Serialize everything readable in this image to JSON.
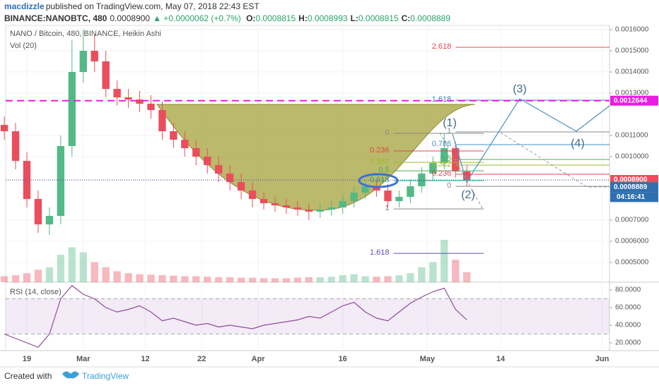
{
  "header": {
    "author": "macdizzle",
    "published": "published on TradingView.com, May 07, 2018 22:43 EST",
    "symbol": "BINANCE:NANOBTC, 480",
    "price": "0.0008900",
    "change": "▲ +0.0000062 (+0.7%)",
    "ohlc": [
      {
        "key": "O:",
        "value": "0.0008815"
      },
      {
        "key": "H:",
        "value": "0.0008993"
      },
      {
        "key": "L:",
        "value": "0.0008815"
      },
      {
        "key": "C:",
        "value": "0.0008889"
      }
    ]
  },
  "chart_data": {
    "type": "candlestick",
    "title": "NANO / Bitcoin, 480, BINANCE, Heikin Ashi",
    "x": [
      -4,
      -2,
      0,
      2,
      4,
      6,
      8,
      10,
      12,
      14,
      16,
      18,
      20,
      22,
      24,
      26,
      28,
      30,
      32,
      34,
      36,
      38,
      40,
      42,
      44,
      46,
      48,
      50,
      52,
      54,
      56,
      58,
      60,
      62,
      64,
      66,
      68,
      70,
      72,
      74,
      76,
      78
    ],
    "open": [
      0.00115,
      0.00112,
      0.00098,
      0.0008,
      0.00068,
      0.00072,
      0.00105,
      0.0014,
      0.0015,
      0.00145,
      0.00132,
      0.00128,
      0.00127,
      0.00125,
      0.00122,
      0.00112,
      0.00108,
      0.00104,
      0.001,
      0.00096,
      0.00092,
      0.00088,
      0.00084,
      0.0008,
      0.00078,
      0.00077,
      0.00076,
      0.00075,
      0.00074,
      0.00075,
      0.00076,
      0.00079,
      0.00083,
      0.00086,
      0.00084,
      0.00079,
      0.00081,
      0.00086,
      0.00092,
      0.00097,
      0.00104,
      0.00093
    ],
    "high": [
      0.00119,
      0.00116,
      0.00102,
      0.00084,
      0.00076,
      0.0011,
      0.00155,
      0.0016,
      0.00158,
      0.0015,
      0.00136,
      0.00132,
      0.00131,
      0.00129,
      0.00126,
      0.00116,
      0.00112,
      0.00108,
      0.00104,
      0.001,
      0.00096,
      0.00092,
      0.00088,
      0.00083,
      0.00081,
      0.0008,
      0.00079,
      0.00078,
      0.00078,
      0.00079,
      0.00082,
      0.00086,
      0.00089,
      0.00089,
      0.00087,
      0.00084,
      0.00089,
      0.00095,
      0.001,
      0.00111,
      0.00107,
      0.00096
    ],
    "low": [
      0.00108,
      0.00094,
      0.00076,
      0.00064,
      0.00063,
      0.00068,
      0.001,
      0.00135,
      0.0014,
      0.00128,
      0.00124,
      0.00123,
      0.00121,
      0.00118,
      0.00108,
      0.00104,
      0.001,
      0.00096,
      0.00092,
      0.00088,
      0.00084,
      0.0008,
      0.00076,
      0.00075,
      0.00074,
      0.00073,
      0.00072,
      0.0007,
      0.00071,
      0.00072,
      0.00073,
      0.00076,
      0.0008,
      0.00081,
      0.00076,
      0.00076,
      0.00078,
      0.00083,
      0.00089,
      0.00094,
      0.0009,
      0.00086
    ],
    "close": [
      0.00112,
      0.00098,
      0.0008,
      0.00068,
      0.00072,
      0.00105,
      0.0014,
      0.0015,
      0.00145,
      0.00132,
      0.00128,
      0.00127,
      0.00125,
      0.00122,
      0.00112,
      0.00108,
      0.00104,
      0.001,
      0.00096,
      0.00092,
      0.00088,
      0.00084,
      0.0008,
      0.00078,
      0.00077,
      0.00076,
      0.00075,
      0.00074,
      0.00075,
      0.00076,
      0.00079,
      0.00083,
      0.00086,
      0.00084,
      0.00079,
      0.00081,
      0.00086,
      0.00092,
      0.00097,
      0.00104,
      0.00093,
      0.00089
    ],
    "colors": {
      "up": "#53b987",
      "down": "#eb4d5c"
    },
    "xlim": [
      -3.76,
      103.3
    ],
    "xticks": [
      {
        "value": 0,
        "label": "19"
      },
      {
        "value": 10,
        "label": "Mar"
      },
      {
        "value": 21,
        "label": "12"
      },
      {
        "value": 31,
        "label": "22"
      },
      {
        "value": 41,
        "label": "Apr"
      },
      {
        "value": 56,
        "label": "16"
      },
      {
        "value": 71,
        "label": "May"
      },
      {
        "value": 84,
        "label": "14"
      },
      {
        "value": 102,
        "label": "Jun"
      }
    ],
    "ylim": [
      0.000407,
      0.00162
    ],
    "yticks": [
      {
        "value": 0.0016,
        "label": "0.0016000"
      },
      {
        "value": 0.0015,
        "label": "0.0015000"
      },
      {
        "value": 0.0014,
        "label": "0.0014000"
      },
      {
        "value": 0.0013,
        "label": "0.0013000"
      },
      {
        "value": 0.0011,
        "label": "0.0011000"
      },
      {
        "value": 0.001,
        "label": "0.0010000"
      },
      {
        "value": 0.0007,
        "label": "0.0007000"
      },
      {
        "value": 0.0006,
        "label": "0.0006000"
      },
      {
        "value": 0.0005,
        "label": "0.0005000"
      }
    ],
    "grid": true,
    "volume": {
      "title": "Vol (20)",
      "values": [
        12,
        14,
        18,
        25,
        30,
        55,
        70,
        60,
        40,
        30,
        22,
        18,
        16,
        15,
        14,
        13,
        12,
        12,
        11,
        10,
        10,
        9,
        9,
        8,
        8,
        8,
        9,
        10,
        10,
        11,
        14,
        16,
        12,
        11,
        12,
        14,
        18,
        30,
        40,
        85,
        45,
        20
      ]
    },
    "rsi": {
      "title": "RSI (14, close)",
      "color": "#8e4b9c",
      "values": [
        30,
        25,
        20,
        15,
        30,
        70,
        85,
        75,
        70,
        60,
        55,
        58,
        62,
        55,
        45,
        48,
        44,
        40,
        42,
        38,
        40,
        38,
        36,
        40,
        42,
        44,
        46,
        50,
        48,
        55,
        62,
        66,
        55,
        48,
        45,
        55,
        65,
        72,
        78,
        82,
        58,
        46
      ],
      "ylim": [
        11.2,
        88.8
      ],
      "yticks": [
        {
          "value": 80,
          "label": "80.0000"
        },
        {
          "value": 60,
          "label": "60.0000"
        },
        {
          "value": 40,
          "label": "40.0000"
        },
        {
          "value": 20,
          "label": "20.0000"
        }
      ],
      "band": [
        30,
        70
      ]
    },
    "levels": [
      {
        "value": 0.0012644,
        "label": "0.0012644",
        "color": "#e91ee0"
      },
      {
        "value": 0.00089,
        "label": "0.0008900",
        "color": "#eb4d5c"
      },
      {
        "value": 0.0008889,
        "label": "0.0008889",
        "color": "#2f6fb0"
      }
    ],
    "countdown": "04:16:41",
    "fib": [
      {
        "xlim": [
          65,
          81
        ],
        "levels": [
          {
            "label": "1.618",
            "value": 0.0005433,
            "color": "#5b4fbd"
          },
          {
            "label": "1",
            "value": 0.0007533,
            "color": "#888888"
          },
          {
            "label": "0.618",
            "value": 0.0008867,
            "color": "#2a9d8f"
          },
          {
            "label": "0.5",
            "value": 0.0009333,
            "color": "#4caf50"
          },
          {
            "label": "0.382",
            "value": 0.0009733,
            "color": "#9bbb2e"
          },
          {
            "label": "0.236",
            "value": 0.0010267,
            "color": "#e0484d"
          },
          {
            "label": "0",
            "value": 0.00111,
            "color": "#888888"
          }
        ]
      },
      {
        "xlim": [
          76,
          103.3
        ],
        "levels": [
          {
            "label": "2.618",
            "value": 0.0015167,
            "color": "#e0484d"
          },
          {
            "label": "1.618",
            "value": 0.0012667,
            "color": "#3d6fd6"
          },
          {
            "label": "1",
            "value": 0.0011167,
            "color": "#888888"
          },
          {
            "label": "0.786",
            "value": 0.0010567,
            "color": "#4a90c4"
          },
          {
            "label": "0.5",
            "value": 0.0009867,
            "color": "#4caf50"
          },
          {
            "label": "0.382",
            "value": 0.00096,
            "color": "#9bbb2e"
          },
          {
            "label": "0.236",
            "value": 0.0009167,
            "color": "#e0484d"
          },
          {
            "label": "0",
            "value": 0.00086,
            "color": "#888888"
          }
        ]
      }
    ],
    "waves": [
      "(1)",
      "(2)",
      "(3)",
      "(4)"
    ]
  },
  "footer": {
    "created": "Created with",
    "brand": "TradingView"
  }
}
